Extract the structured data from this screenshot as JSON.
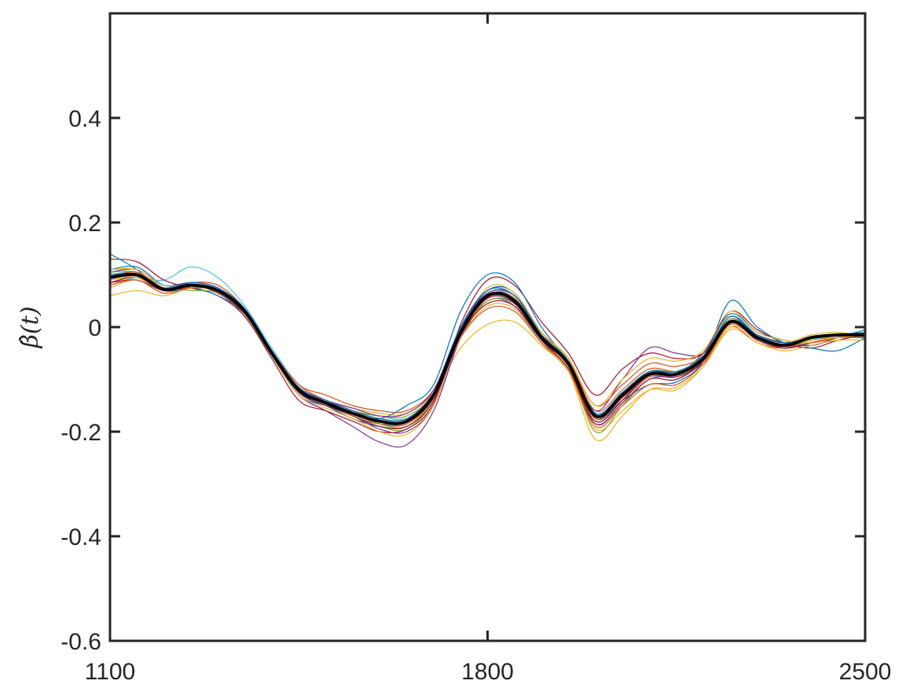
{
  "chart_data": {
    "type": "line",
    "title": "",
    "xlabel": "",
    "ylabel": "β̂(t)",
    "xlim": [
      1100,
      2500
    ],
    "ylim": [
      -0.6,
      0.6
    ],
    "xticks": [
      1100,
      1800,
      2500
    ],
    "xtick_labels": [
      "1100",
      "1800",
      "2500"
    ],
    "yticks": [
      -0.6,
      -0.4,
      -0.2,
      0,
      0.2,
      0.4
    ],
    "ytick_labels": [
      "-0.6",
      "-0.4",
      "-0.2",
      "0",
      "0.2",
      "0.4"
    ],
    "grid": false,
    "legend": "none",
    "x": [
      1100,
      1150,
      1200,
      1250,
      1300,
      1350,
      1400,
      1450,
      1500,
      1550,
      1600,
      1650,
      1700,
      1750,
      1800,
      1850,
      1900,
      1950,
      2000,
      2050,
      2100,
      2150,
      2200,
      2250,
      2300,
      2350,
      2400,
      2450,
      2500
    ],
    "mean_series": {
      "color": "#000000",
      "values": [
        0.095,
        0.1,
        0.072,
        0.08,
        0.07,
        0.03,
        -0.05,
        -0.12,
        -0.145,
        -0.165,
        -0.18,
        -0.18,
        -0.13,
        -0.01,
        0.06,
        0.05,
        -0.02,
        -0.07,
        -0.17,
        -0.13,
        -0.09,
        -0.09,
        -0.06,
        0.01,
        -0.02,
        -0.035,
        -0.02,
        -0.015,
        -0.015
      ]
    },
    "series_colors": [
      "#0072BD",
      "#D95319",
      "#EDB120",
      "#7E2F8E",
      "#77AC30",
      "#4DBEEE",
      "#A2142F"
    ],
    "series": [
      {
        "values": [
          0.11,
          0.115,
          0.08,
          0.08,
          0.07,
          0.02,
          -0.055,
          -0.125,
          -0.15,
          -0.175,
          -0.19,
          -0.19,
          -0.14,
          -0.02,
          0.05,
          0.04,
          -0.03,
          -0.085,
          -0.185,
          -0.145,
          -0.1,
          -0.09,
          -0.05,
          0.025,
          -0.01,
          -0.025,
          -0.035,
          -0.02,
          -0.005
        ]
      },
      {
        "values": [
          0.085,
          0.095,
          0.075,
          0.085,
          0.08,
          0.035,
          -0.045,
          -0.11,
          -0.13,
          -0.15,
          -0.16,
          -0.16,
          -0.12,
          -0.015,
          0.05,
          0.045,
          -0.015,
          -0.06,
          -0.16,
          -0.12,
          -0.08,
          -0.085,
          -0.07,
          0.0,
          -0.03,
          -0.04,
          -0.025,
          -0.02,
          -0.02
        ]
      },
      {
        "values": [
          0.06,
          0.07,
          0.06,
          0.075,
          0.07,
          0.03,
          -0.045,
          -0.115,
          -0.14,
          -0.155,
          -0.165,
          -0.165,
          -0.125,
          -0.04,
          0.005,
          0.01,
          -0.035,
          -0.085,
          -0.195,
          -0.16,
          -0.12,
          -0.12,
          -0.075,
          0.0,
          -0.02,
          -0.03,
          -0.015,
          -0.01,
          -0.02
        ]
      },
      {
        "values": [
          0.1,
          0.105,
          0.075,
          0.08,
          0.07,
          0.025,
          -0.055,
          -0.13,
          -0.16,
          -0.19,
          -0.22,
          -0.225,
          -0.16,
          -0.02,
          0.06,
          0.055,
          -0.02,
          -0.07,
          -0.16,
          -0.1,
          -0.04,
          -0.05,
          -0.05,
          0.015,
          -0.015,
          -0.03,
          -0.035,
          -0.02,
          -0.01
        ]
      },
      {
        "values": [
          0.09,
          0.095,
          0.07,
          0.08,
          0.065,
          0.03,
          -0.05,
          -0.12,
          -0.145,
          -0.17,
          -0.19,
          -0.195,
          -0.14,
          -0.01,
          0.05,
          0.045,
          -0.02,
          -0.075,
          -0.2,
          -0.15,
          -0.1,
          -0.1,
          -0.06,
          0.01,
          -0.025,
          -0.035,
          -0.025,
          -0.02,
          -0.015
        ]
      },
      {
        "values": [
          0.08,
          0.095,
          0.09,
          0.115,
          0.095,
          0.04,
          -0.04,
          -0.11,
          -0.14,
          -0.16,
          -0.17,
          -0.175,
          -0.135,
          -0.01,
          0.06,
          0.055,
          -0.015,
          -0.07,
          -0.175,
          -0.135,
          -0.095,
          -0.095,
          -0.065,
          0.01,
          -0.02,
          -0.035,
          -0.025,
          -0.015,
          -0.01
        ]
      },
      {
        "values": [
          0.13,
          0.125,
          0.09,
          0.075,
          0.06,
          0.02,
          -0.06,
          -0.14,
          -0.16,
          -0.18,
          -0.2,
          -0.195,
          -0.145,
          0.005,
          0.09,
          0.08,
          0.01,
          -0.05,
          -0.13,
          -0.08,
          -0.05,
          -0.06,
          -0.05,
          0.03,
          -0.005,
          -0.03,
          -0.04,
          -0.025,
          -0.015
        ]
      },
      {
        "values": [
          0.14,
          0.11,
          0.07,
          0.075,
          0.06,
          0.025,
          -0.055,
          -0.13,
          -0.15,
          -0.165,
          -0.175,
          -0.15,
          -0.11,
          0.03,
          0.1,
          0.085,
          0.0,
          -0.07,
          -0.175,
          -0.14,
          -0.11,
          -0.105,
          -0.065,
          0.05,
          0.0,
          -0.03,
          -0.04,
          -0.045,
          -0.02
        ]
      },
      {
        "values": [
          0.095,
          0.1,
          0.07,
          0.085,
          0.075,
          0.035,
          -0.05,
          -0.12,
          -0.14,
          -0.16,
          -0.18,
          -0.185,
          -0.13,
          -0.005,
          0.07,
          0.06,
          -0.01,
          -0.06,
          -0.15,
          -0.11,
          -0.07,
          -0.075,
          -0.055,
          0.02,
          -0.015,
          -0.03,
          -0.02,
          -0.015,
          -0.01
        ]
      },
      {
        "values": [
          0.075,
          0.09,
          0.065,
          0.075,
          0.07,
          0.03,
          -0.045,
          -0.115,
          -0.145,
          -0.165,
          -0.185,
          -0.19,
          -0.135,
          -0.02,
          0.04,
          0.035,
          -0.03,
          -0.085,
          -0.215,
          -0.17,
          -0.12,
          -0.115,
          -0.075,
          -0.005,
          -0.03,
          -0.045,
          -0.035,
          -0.025,
          -0.025
        ]
      },
      {
        "values": [
          0.105,
          0.11,
          0.08,
          0.085,
          0.075,
          0.03,
          -0.05,
          -0.125,
          -0.15,
          -0.17,
          -0.195,
          -0.2,
          -0.15,
          -0.015,
          0.055,
          0.05,
          -0.025,
          -0.08,
          -0.18,
          -0.14,
          -0.09,
          -0.085,
          -0.06,
          0.02,
          -0.02,
          -0.04,
          -0.03,
          -0.02,
          -0.015
        ]
      },
      {
        "values": [
          0.09,
          0.095,
          0.075,
          0.07,
          0.065,
          0.025,
          -0.045,
          -0.115,
          -0.14,
          -0.16,
          -0.17,
          -0.17,
          -0.125,
          -0.005,
          0.065,
          0.06,
          -0.01,
          -0.065,
          -0.165,
          -0.125,
          -0.085,
          -0.085,
          -0.055,
          0.015,
          -0.015,
          -0.035,
          -0.025,
          -0.015,
          -0.02
        ]
      },
      {
        "values": [
          0.1,
          0.105,
          0.075,
          0.085,
          0.075,
          0.03,
          -0.05,
          -0.12,
          -0.145,
          -0.165,
          -0.185,
          -0.185,
          -0.135,
          -0.01,
          0.065,
          0.055,
          -0.02,
          -0.075,
          -0.17,
          -0.13,
          -0.09,
          -0.095,
          -0.065,
          0.005,
          -0.025,
          -0.035,
          -0.03,
          -0.02,
          -0.015
        ]
      },
      {
        "values": [
          0.085,
          0.09,
          0.07,
          0.08,
          0.07,
          0.03,
          -0.05,
          -0.115,
          -0.14,
          -0.165,
          -0.18,
          -0.18,
          -0.13,
          -0.015,
          0.045,
          0.04,
          -0.025,
          -0.075,
          -0.185,
          -0.145,
          -0.1,
          -0.1,
          -0.065,
          0.01,
          -0.02,
          -0.035,
          -0.025,
          -0.015,
          -0.01
        ]
      },
      {
        "values": [
          0.095,
          0.1,
          0.075,
          0.08,
          0.07,
          0.03,
          -0.05,
          -0.125,
          -0.145,
          -0.17,
          -0.185,
          -0.18,
          -0.13,
          -0.005,
          0.07,
          0.065,
          -0.015,
          -0.07,
          -0.165,
          -0.125,
          -0.085,
          -0.09,
          -0.06,
          0.015,
          -0.015,
          -0.03,
          -0.02,
          -0.015,
          -0.015
        ]
      },
      {
        "values": [
          0.08,
          0.09,
          0.065,
          0.075,
          0.07,
          0.035,
          -0.045,
          -0.11,
          -0.14,
          -0.16,
          -0.175,
          -0.175,
          -0.125,
          -0.02,
          0.035,
          0.03,
          -0.03,
          -0.08,
          -0.19,
          -0.15,
          -0.11,
          -0.11,
          -0.07,
          0.005,
          -0.025,
          -0.04,
          -0.03,
          -0.02,
          -0.02
        ]
      },
      {
        "values": [
          0.11,
          0.11,
          0.08,
          0.08,
          0.07,
          0.025,
          -0.055,
          -0.13,
          -0.155,
          -0.175,
          -0.2,
          -0.205,
          -0.15,
          -0.01,
          0.075,
          0.065,
          -0.01,
          -0.06,
          -0.15,
          -0.1,
          -0.06,
          -0.065,
          -0.045,
          0.03,
          -0.01,
          -0.025,
          -0.03,
          -0.02,
          -0.01
        ]
      },
      {
        "values": [
          0.095,
          0.095,
          0.07,
          0.085,
          0.075,
          0.035,
          -0.045,
          -0.115,
          -0.14,
          -0.155,
          -0.17,
          -0.165,
          -0.12,
          0.0,
          0.065,
          0.06,
          -0.015,
          -0.07,
          -0.17,
          -0.135,
          -0.095,
          -0.095,
          -0.065,
          0.01,
          -0.02,
          -0.035,
          -0.025,
          -0.02,
          -0.02
        ]
      },
      {
        "values": [
          0.105,
          0.105,
          0.075,
          0.08,
          0.07,
          0.03,
          -0.05,
          -0.12,
          -0.145,
          -0.165,
          -0.185,
          -0.19,
          -0.14,
          -0.01,
          0.06,
          0.05,
          -0.02,
          -0.075,
          -0.175,
          -0.13,
          -0.085,
          -0.085,
          -0.06,
          0.015,
          -0.02,
          -0.035,
          -0.025,
          -0.015,
          -0.015
        ]
      },
      {
        "values": [
          0.09,
          0.1,
          0.08,
          0.08,
          0.07,
          0.03,
          -0.05,
          -0.12,
          -0.145,
          -0.165,
          -0.18,
          -0.18,
          -0.13,
          -0.01,
          0.055,
          0.05,
          -0.02,
          -0.07,
          -0.17,
          -0.13,
          -0.09,
          -0.09,
          -0.06,
          0.01,
          -0.02,
          -0.035,
          -0.025,
          -0.015,
          -0.015
        ]
      },
      {
        "values": [
          0.085,
          0.095,
          0.07,
          0.08,
          0.065,
          0.025,
          -0.05,
          -0.125,
          -0.15,
          -0.17,
          -0.19,
          -0.19,
          -0.14,
          -0.015,
          0.055,
          0.045,
          -0.025,
          -0.08,
          -0.18,
          -0.14,
          -0.095,
          -0.095,
          -0.065,
          0.01,
          -0.025,
          -0.04,
          -0.03,
          -0.02,
          -0.015
        ]
      },
      {
        "values": [
          0.1,
          0.1,
          0.075,
          0.085,
          0.075,
          0.035,
          -0.045,
          -0.115,
          -0.14,
          -0.16,
          -0.175,
          -0.175,
          -0.125,
          0.0,
          0.07,
          0.06,
          -0.015,
          -0.065,
          -0.165,
          -0.125,
          -0.085,
          -0.085,
          -0.055,
          0.02,
          -0.015,
          -0.03,
          -0.02,
          -0.015,
          -0.01
        ]
      },
      {
        "values": [
          0.095,
          0.105,
          0.075,
          0.075,
          0.07,
          0.03,
          -0.05,
          -0.12,
          -0.145,
          -0.17,
          -0.185,
          -0.185,
          -0.135,
          -0.01,
          0.06,
          0.055,
          -0.02,
          -0.075,
          -0.175,
          -0.135,
          -0.095,
          -0.09,
          -0.06,
          0.01,
          -0.02,
          -0.035,
          -0.03,
          -0.02,
          -0.02
        ]
      },
      {
        "values": [
          0.09,
          0.095,
          0.07,
          0.08,
          0.07,
          0.03,
          -0.05,
          -0.12,
          -0.145,
          -0.165,
          -0.18,
          -0.18,
          -0.13,
          -0.01,
          0.06,
          0.05,
          -0.02,
          -0.07,
          -0.17,
          -0.13,
          -0.09,
          -0.09,
          -0.06,
          0.01,
          -0.02,
          -0.035,
          -0.025,
          -0.02,
          -0.015
        ]
      }
    ]
  }
}
